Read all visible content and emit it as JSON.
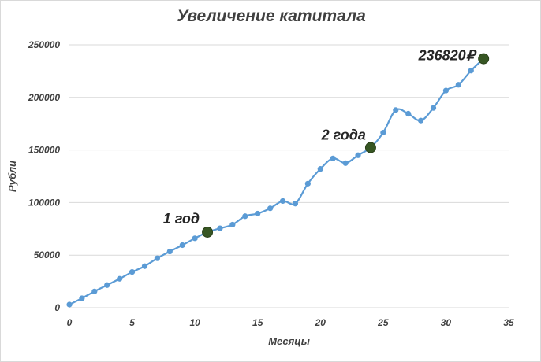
{
  "chart_data": {
    "type": "line",
    "title": "Увеличение катитала",
    "xlabel": "Месяцы",
    "ylabel": "Рубли",
    "xlim": [
      0,
      35
    ],
    "ylim": [
      0,
      250000
    ],
    "x_ticks": [
      0,
      5,
      10,
      15,
      20,
      25,
      30,
      35
    ],
    "y_ticks": [
      0,
      50000,
      100000,
      150000,
      200000,
      250000
    ],
    "grid": "horizontal",
    "legend": "none",
    "colors": {
      "line": "#5b9bd5",
      "marker": "#5b9bd5",
      "highlight": "#375623",
      "grid": "#d9d9d9",
      "text": "#404040"
    },
    "series": [
      {
        "x": [
          0,
          1,
          2,
          3,
          4,
          5,
          6,
          7,
          8,
          9,
          10,
          11,
          12,
          13,
          14,
          15,
          16,
          17,
          18,
          19,
          20,
          21,
          22,
          23,
          24,
          25,
          26,
          27,
          28,
          29,
          30,
          31,
          32,
          33
        ],
        "values": [
          3000,
          9000,
          15500,
          21500,
          27500,
          34000,
          39500,
          47000,
          53500,
          59500,
          66000,
          71900,
          75500,
          79000,
          87000,
          89500,
          94500,
          101500,
          99000,
          118000,
          132000,
          142000,
          137500,
          145000,
          152300,
          166500,
          188000,
          184500,
          178000,
          190000,
          206500,
          212000,
          225500,
          236820
        ]
      }
    ],
    "annotations": [
      {
        "label": "1 год",
        "x": 11,
        "y": 71900
      },
      {
        "label": "2 года",
        "x": 24,
        "y": 152300
      },
      {
        "label": "236820₽",
        "x": 33,
        "y": 236820
      }
    ]
  }
}
